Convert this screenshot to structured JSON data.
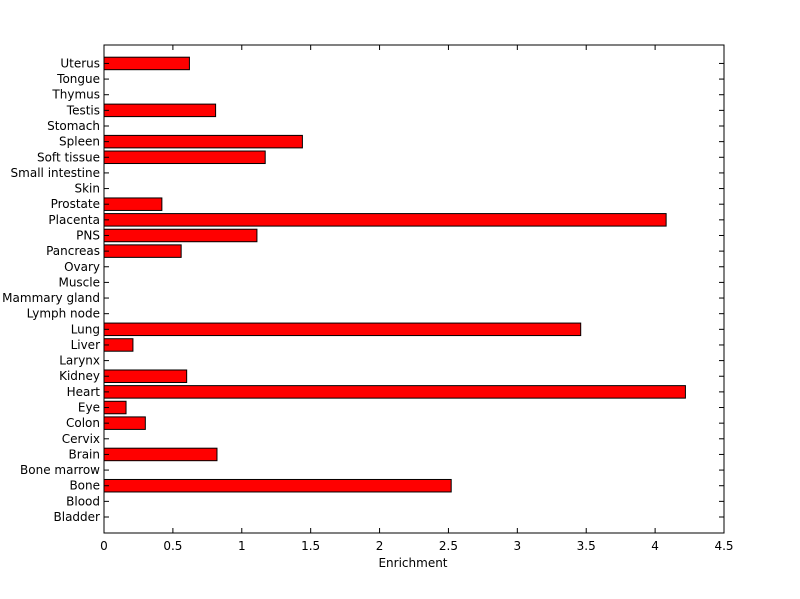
{
  "chart_data": {
    "type": "bar",
    "orientation": "horizontal",
    "title": "",
    "xlabel": "Enrichment",
    "ylabel": "",
    "xlim": [
      0,
      4.5
    ],
    "xticks": [
      "0",
      "0.5",
      "1",
      "1.5",
      "2",
      "2.5",
      "3",
      "3.5",
      "4",
      "4.5"
    ],
    "grid": false,
    "legend": "none",
    "bar_color": "#ff0000",
    "bar_edge_color": "#000000",
    "categories": [
      "Bladder",
      "Blood",
      "Bone",
      "Bone marrow",
      "Brain",
      "Cervix",
      "Colon",
      "Eye",
      "Heart",
      "Kidney",
      "Larynx",
      "Liver",
      "Lung",
      "Lymph node",
      "Mammary gland",
      "Muscle",
      "Ovary",
      "Pancreas",
      "PNS",
      "Placenta",
      "Prostate",
      "Skin",
      "Small intestine",
      "Soft tissue",
      "Spleen",
      "Stomach",
      "Testis",
      "Thymus",
      "Tongue",
      "Uterus"
    ],
    "values": [
      0,
      0,
      2.52,
      0,
      0.82,
      0,
      0.3,
      0.16,
      4.22,
      0.6,
      0,
      0.21,
      3.46,
      0,
      0,
      0,
      0,
      0.56,
      1.11,
      4.08,
      0.42,
      0,
      0,
      1.17,
      1.44,
      0,
      0.81,
      0,
      0,
      0.62
    ]
  }
}
